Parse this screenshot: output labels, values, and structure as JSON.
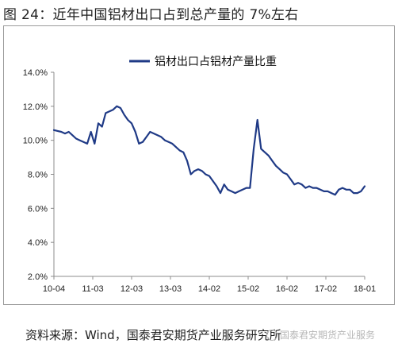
{
  "figure_title": "图 24：近年中国铝材出口占到总产量的 7%左右",
  "source_text": "资料来源：Wind，国泰君安期货产业服务研究所",
  "watermark_text": "国泰君安期货产业服务",
  "colors": {
    "line": "#1f3a86",
    "axis": "#8c8c8c",
    "frame": "#9a9a9a"
  },
  "chart_data": {
    "type": "line",
    "title": "",
    "xlabel": "",
    "ylabel": "",
    "ylim": [
      2.0,
      14.0
    ],
    "y_ticks": [
      "2.0%",
      "4.0%",
      "6.0%",
      "8.0%",
      "10.0%",
      "12.0%",
      "14.0%"
    ],
    "y_tick_values": [
      2,
      4,
      6,
      8,
      10,
      12,
      14
    ],
    "x_tick_labels": [
      "10-04",
      "11-03",
      "12-03",
      "13-03",
      "14-02",
      "15-02",
      "16-02",
      "17-02",
      "18-01"
    ],
    "grid": false,
    "legend_position": "top-center",
    "series": [
      {
        "name": "铝材出口占铝材产量比重",
        "values": [
          10.6,
          10.55,
          10.5,
          10.4,
          10.5,
          10.3,
          10.1,
          10.0,
          9.9,
          9.8,
          10.5,
          9.8,
          11.0,
          10.8,
          11.6,
          11.7,
          11.8,
          12.0,
          11.9,
          11.5,
          11.2,
          11.0,
          10.5,
          9.8,
          9.9,
          10.2,
          10.5,
          10.4,
          10.3,
          10.2,
          10.0,
          9.9,
          9.8,
          9.6,
          9.4,
          9.3,
          8.8,
          8.0,
          8.2,
          8.3,
          8.2,
          8.0,
          7.9,
          7.6,
          7.3,
          6.9,
          7.4,
          7.1,
          7.0,
          6.9,
          7.0,
          7.1,
          7.2,
          7.2,
          9.5,
          11.2,
          9.5,
          9.3,
          9.1,
          8.8,
          8.5,
          8.3,
          8.1,
          8.0,
          7.7,
          7.4,
          7.5,
          7.4,
          7.2,
          7.3,
          7.2,
          7.2,
          7.1,
          7.0,
          7.0,
          6.9,
          6.8,
          7.1,
          7.2,
          7.1,
          7.1,
          6.9,
          6.9,
          7.0,
          7.3
        ]
      }
    ]
  }
}
